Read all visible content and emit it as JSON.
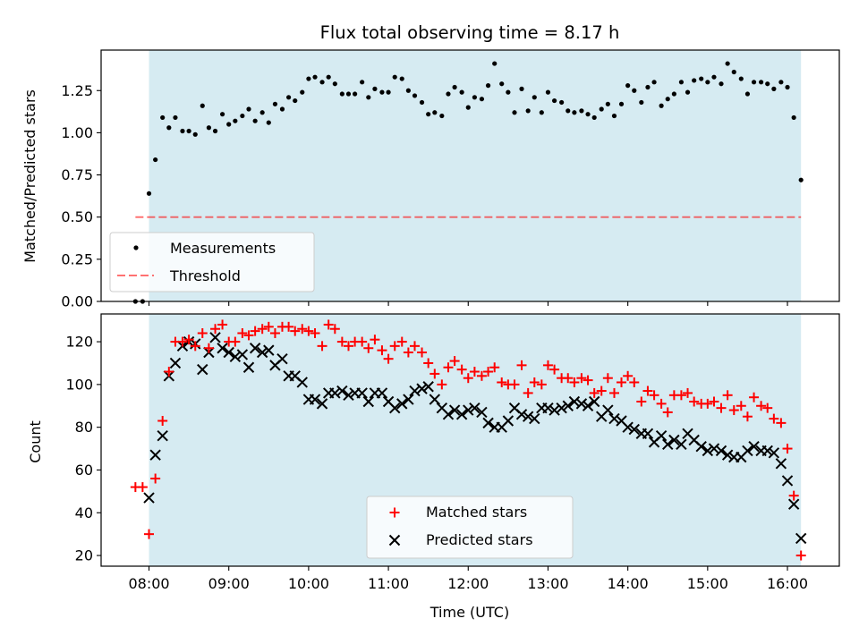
{
  "colors": {
    "observing_band": "#add8e6",
    "measurements": "#000000",
    "threshold": "#ff0000",
    "matched": "#ff0000",
    "predicted": "#000000"
  },
  "chart_data": [
    {
      "type": "scatter",
      "title": "Flux total observing time = 8.17 h",
      "xlabel": "",
      "ylabel": "Matched/Predicted stars",
      "x_unit": "hours (UTC)",
      "xlim": [
        7.4,
        16.65
      ],
      "ylim": [
        0.0,
        1.49
      ],
      "y_ticks": [
        0.0,
        0.25,
        0.5,
        0.75,
        1.0,
        1.25
      ],
      "y_tick_labels": [
        "0.00",
        "0.25",
        "0.50",
        "0.75",
        "1.00",
        "1.25"
      ],
      "x_ticks": [
        8,
        9,
        10,
        11,
        12,
        13,
        14,
        15,
        16
      ],
      "x_tick_labels": [
        "",
        "",
        "",
        "",
        "",
        "",
        "",
        "",
        ""
      ],
      "observing_span": [
        8.0,
        16.17
      ],
      "legend_position": "lower-left",
      "series": [
        {
          "name": "Measurements",
          "kind": "points",
          "x": [
            7.83,
            7.92,
            8.0,
            8.08,
            8.17,
            8.25,
            8.33,
            8.42,
            8.5,
            8.58,
            8.67,
            8.75,
            8.83,
            8.92,
            9.0,
            9.08,
            9.17,
            9.25,
            9.33,
            9.42,
            9.5,
            9.58,
            9.67,
            9.75,
            9.83,
            9.92,
            10.0,
            10.08,
            10.17,
            10.25,
            10.33,
            10.42,
            10.5,
            10.58,
            10.67,
            10.75,
            10.83,
            10.92,
            11.0,
            11.08,
            11.17,
            11.25,
            11.33,
            11.42,
            11.5,
            11.58,
            11.67,
            11.75,
            11.83,
            11.92,
            12.0,
            12.08,
            12.17,
            12.25,
            12.33,
            12.42,
            12.5,
            12.58,
            12.67,
            12.75,
            12.83,
            12.92,
            13.0,
            13.08,
            13.17,
            13.25,
            13.33,
            13.42,
            13.5,
            13.58,
            13.67,
            13.75,
            13.83,
            13.92,
            14.0,
            14.08,
            14.17,
            14.25,
            14.33,
            14.42,
            14.5,
            14.58,
            14.67,
            14.75,
            14.83,
            14.92,
            15.0,
            15.08,
            15.17,
            15.25,
            15.33,
            15.42,
            15.5,
            15.58,
            15.67,
            15.75,
            15.83,
            15.92,
            16.0,
            16.08,
            16.17
          ],
          "y": [
            0.0,
            0.0,
            0.64,
            0.84,
            1.09,
            1.03,
            1.09,
            1.01,
            1.01,
            0.99,
            1.16,
            1.03,
            1.01,
            1.11,
            1.05,
            1.07,
            1.1,
            1.14,
            1.07,
            1.12,
            1.06,
            1.17,
            1.14,
            1.21,
            1.19,
            1.24,
            1.32,
            1.33,
            1.3,
            1.33,
            1.29,
            1.23,
            1.23,
            1.23,
            1.3,
            1.21,
            1.26,
            1.24,
            1.24,
            1.33,
            1.32,
            1.25,
            1.22,
            1.18,
            1.11,
            1.12,
            1.1,
            1.23,
            1.27,
            1.24,
            1.15,
            1.21,
            1.2,
            1.28,
            1.41,
            1.29,
            1.24,
            1.12,
            1.26,
            1.13,
            1.21,
            1.12,
            1.24,
            1.19,
            1.18,
            1.13,
            1.12,
            1.13,
            1.11,
            1.09,
            1.14,
            1.17,
            1.1,
            1.17,
            1.28,
            1.25,
            1.18,
            1.27,
            1.3,
            1.16,
            1.2,
            1.23,
            1.3,
            1.24,
            1.31,
            1.32,
            1.3,
            1.33,
            1.29,
            1.41,
            1.36,
            1.32,
            1.23,
            1.3,
            1.3,
            1.29,
            1.26,
            1.3,
            1.27,
            1.09,
            0.72
          ]
        },
        {
          "name": "Threshold",
          "kind": "dashed-line",
          "x": [
            7.83,
            16.17
          ],
          "y": [
            0.5,
            0.5
          ]
        }
      ]
    },
    {
      "type": "scatter",
      "title": "",
      "xlabel": "Time (UTC)",
      "ylabel": "Count",
      "x_unit": "hours (UTC)",
      "xlim": [
        7.4,
        16.65
      ],
      "ylim": [
        15,
        133
      ],
      "y_ticks": [
        20,
        40,
        60,
        80,
        100,
        120
      ],
      "y_tick_labels": [
        "20",
        "40",
        "60",
        "80",
        "100",
        "120"
      ],
      "x_ticks": [
        8,
        9,
        10,
        11,
        12,
        13,
        14,
        15,
        16
      ],
      "x_tick_labels": [
        "08:00",
        "09:00",
        "10:00",
        "11:00",
        "12:00",
        "13:00",
        "14:00",
        "15:00",
        "16:00"
      ],
      "observing_span": [
        8.0,
        16.17
      ],
      "legend_position": "lower-center",
      "series": [
        {
          "name": "Matched stars",
          "kind": "plus",
          "x": [
            7.83,
            7.92,
            8.0,
            8.08,
            8.17,
            8.25,
            8.33,
            8.42,
            8.5,
            8.58,
            8.67,
            8.75,
            8.83,
            8.92,
            9.0,
            9.08,
            9.17,
            9.25,
            9.33,
            9.42,
            9.5,
            9.58,
            9.67,
            9.75,
            9.83,
            9.92,
            10.0,
            10.08,
            10.17,
            10.25,
            10.33,
            10.42,
            10.5,
            10.58,
            10.67,
            10.75,
            10.83,
            10.92,
            11.0,
            11.08,
            11.17,
            11.25,
            11.33,
            11.42,
            11.5,
            11.58,
            11.67,
            11.75,
            11.83,
            11.92,
            12.0,
            12.08,
            12.17,
            12.25,
            12.33,
            12.42,
            12.5,
            12.58,
            12.67,
            12.75,
            12.83,
            12.92,
            13.0,
            13.08,
            13.17,
            13.25,
            13.33,
            13.42,
            13.5,
            13.58,
            13.67,
            13.75,
            13.83,
            13.92,
            14.0,
            14.08,
            14.17,
            14.25,
            14.33,
            14.42,
            14.5,
            14.58,
            14.67,
            14.75,
            14.83,
            14.92,
            15.0,
            15.08,
            15.17,
            15.25,
            15.33,
            15.42,
            15.5,
            15.58,
            15.67,
            15.75,
            15.83,
            15.92,
            16.0,
            16.08,
            16.17
          ],
          "y": [
            52,
            52,
            30,
            56,
            83,
            106,
            120,
            120,
            121,
            118,
            124,
            117,
            126,
            128,
            120,
            120,
            124,
            123,
            125,
            126,
            127,
            124,
            127,
            127,
            125,
            126,
            125,
            124,
            118,
            128,
            126,
            120,
            118,
            120,
            120,
            117,
            121,
            116,
            112,
            118,
            120,
            115,
            118,
            115,
            110,
            105,
            100,
            108,
            111,
            107,
            103,
            106,
            104,
            106,
            108,
            101,
            100,
            100,
            109,
            96,
            101,
            100,
            109,
            107,
            103,
            103,
            101,
            103,
            102,
            96,
            97,
            103,
            96,
            101,
            104,
            101,
            92,
            97,
            95,
            91,
            87,
            95,
            95,
            96,
            92,
            91,
            91,
            92,
            89,
            95,
            88,
            90,
            85,
            94,
            90,
            89,
            84,
            82,
            70,
            48,
            20
          ]
        },
        {
          "name": "Predicted stars",
          "kind": "x",
          "x": [
            8.0,
            8.08,
            8.17,
            8.25,
            8.33,
            8.42,
            8.5,
            8.58,
            8.67,
            8.75,
            8.83,
            8.92,
            9.0,
            9.08,
            9.17,
            9.25,
            9.33,
            9.42,
            9.5,
            9.58,
            9.67,
            9.75,
            9.83,
            9.92,
            10.0,
            10.08,
            10.17,
            10.25,
            10.33,
            10.42,
            10.5,
            10.58,
            10.67,
            10.75,
            10.83,
            10.92,
            11.0,
            11.08,
            11.17,
            11.25,
            11.33,
            11.42,
            11.5,
            11.58,
            11.67,
            11.75,
            11.83,
            11.92,
            12.0,
            12.08,
            12.17,
            12.25,
            12.33,
            12.42,
            12.5,
            12.58,
            12.67,
            12.75,
            12.83,
            12.92,
            13.0,
            13.08,
            13.17,
            13.25,
            13.33,
            13.42,
            13.5,
            13.58,
            13.67,
            13.75,
            13.83,
            13.92,
            14.0,
            14.08,
            14.17,
            14.25,
            14.33,
            14.42,
            14.5,
            14.58,
            14.67,
            14.75,
            14.83,
            14.92,
            15.0,
            15.08,
            15.17,
            15.25,
            15.33,
            15.42,
            15.5,
            15.58,
            15.67,
            15.75,
            15.83,
            15.92,
            16.0,
            16.08,
            16.17
          ],
          "y": [
            47,
            67,
            76,
            104,
            110,
            118,
            120,
            119,
            107,
            115,
            122,
            117,
            115,
            113,
            114,
            108,
            117,
            115,
            116,
            109,
            112,
            104,
            104,
            101,
            93,
            93,
            91,
            96,
            96,
            97,
            95,
            96,
            96,
            92,
            96,
            96,
            92,
            89,
            91,
            93,
            97,
            98,
            99,
            93,
            89,
            86,
            88,
            86,
            88,
            89,
            87,
            82,
            80,
            80,
            83,
            89,
            86,
            85,
            84,
            89,
            89,
            88,
            89,
            90,
            92,
            91,
            90,
            92,
            85,
            88,
            84,
            83,
            80,
            79,
            77,
            77,
            73,
            76,
            72,
            74,
            72,
            77,
            74,
            71,
            69,
            70,
            69,
            67,
            66,
            66,
            69,
            71,
            69,
            69,
            68,
            63,
            55,
            44,
            28
          ]
        }
      ]
    }
  ]
}
